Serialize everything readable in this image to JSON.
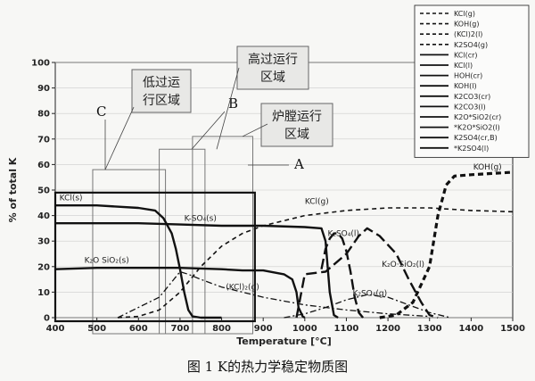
{
  "caption": "图 1 K的热力学稳定物质图",
  "chart_data": {
    "type": "line",
    "xlabel": "Temperature [°C]",
    "ylabel": "% of total K",
    "xlim": [
      400,
      1500
    ],
    "ylim": [
      0,
      100
    ],
    "xticks": [
      400,
      500,
      600,
      700,
      800,
      900,
      1000,
      1100,
      1200,
      1300,
      1400,
      1500
    ],
    "yticks": [
      0,
      10,
      20,
      30,
      40,
      50,
      60,
      70,
      80,
      90,
      100
    ],
    "legend_position": "right",
    "series": [
      {
        "name": "KCl(s)",
        "style": "solid-thick",
        "x": [
          400,
          500,
          600,
          640,
          660,
          680,
          690,
          700,
          710,
          720,
          730,
          750,
          800
        ],
        "y": [
          44,
          44,
          43,
          42,
          39,
          33,
          27,
          19,
          10,
          3,
          0.5,
          0,
          0
        ]
      },
      {
        "name": "K-SO4(s)",
        "style": "solid-thick",
        "x": [
          400,
          600,
          700,
          800,
          900,
          1000,
          1040,
          1050,
          1060,
          1070,
          1080
        ],
        "y": [
          37,
          37,
          36.5,
          36,
          36,
          35.5,
          35,
          30,
          10,
          1,
          0
        ]
      },
      {
        "name": "K2O·SiO2(s)",
        "style": "solid-thick",
        "x": [
          400,
          500,
          600,
          700,
          800,
          850,
          900,
          950,
          970,
          980,
          985,
          995,
          1000
        ],
        "y": [
          19,
          19.5,
          19.5,
          19.5,
          19,
          18.5,
          18.5,
          17,
          15,
          10,
          4,
          0.5,
          0
        ]
      },
      {
        "name": "KCl(g)",
        "style": "dashed",
        "x": [
          550,
          600,
          650,
          700,
          750,
          800,
          850,
          900,
          1000,
          1100,
          1200,
          1300,
          1400,
          1500
        ],
        "y": [
          0,
          0.5,
          3,
          10,
          20,
          28,
          33,
          36,
          40,
          42,
          43,
          43,
          42,
          41.5
        ]
      },
      {
        "name": "K2SO4(l)",
        "style": "long-dash",
        "x": [
          1040,
          1050,
          1060,
          1070,
          1080,
          1090,
          1100,
          1110,
          1120,
          1130,
          1140
        ],
        "y": [
          19,
          27,
          31,
          33,
          33,
          31,
          26,
          18,
          8,
          2,
          0
        ]
      },
      {
        "name": "K2O·SiO2(l)",
        "style": "long-dash",
        "x": [
          980,
          1000,
          1050,
          1100,
          1130,
          1150,
          1180,
          1220,
          1250,
          1280,
          1300,
          1320
        ],
        "y": [
          0,
          17,
          18,
          25,
          32,
          35,
          32,
          25,
          15,
          6,
          1,
          0
        ]
      },
      {
        "name": "(KCl)2(g)",
        "style": "dash-dot",
        "x": [
          550,
          650,
          680,
          700,
          720,
          750,
          800,
          900,
          1000,
          1100,
          1200,
          1300
        ],
        "y": [
          0,
          8,
          14,
          18,
          17,
          15,
          12,
          8,
          5,
          3,
          1.5,
          0.5
        ]
      },
      {
        "name": "K2SO4(g)",
        "style": "dash-dot",
        "x": [
          950,
          1000,
          1050,
          1100,
          1150,
          1200,
          1250,
          1300,
          1350
        ],
        "y": [
          0,
          1.5,
          4,
          7,
          9,
          8,
          5,
          2,
          0
        ]
      },
      {
        "name": "KOH(g)",
        "style": "dashed-thick",
        "x": [
          1180,
          1220,
          1260,
          1300,
          1320,
          1340,
          1360,
          1400,
          1450,
          1500
        ],
        "y": [
          0,
          1,
          6,
          20,
          40,
          52,
          55.5,
          56,
          56.5,
          57
        ]
      }
    ],
    "curve_labels": [
      {
        "text": "KCl(s)",
        "x": 410,
        "y": 46
      },
      {
        "text": "K-SO₄(s)",
        "x": 710,
        "y": 38
      },
      {
        "text": "K₂O SiO₂(s)",
        "x": 470,
        "y": 21.5
      },
      {
        "text": "KCl(g)",
        "x": 1000,
        "y": 44.5
      },
      {
        "text": "K₂SO₄(l)",
        "x": 1055,
        "y": 32
      },
      {
        "text": "K₂O·SiO₂(l)",
        "x": 1185,
        "y": 20
      },
      {
        "text": "(KCl)₂(g)",
        "x": 810,
        "y": 11
      },
      {
        "text": "K₂SO₄(g)",
        "x": 1115,
        "y": 8.5
      },
      {
        "text": "KOH(g)",
        "x": 1405,
        "y": 58
      }
    ],
    "legend": [
      {
        "text": "KCl(g)",
        "style": "dashed"
      },
      {
        "text": "KOH(g)",
        "style": "dashed"
      },
      {
        "text": "(KCl)2(l)",
        "style": "dashed"
      },
      {
        "text": "K2SO4(g)",
        "style": "dashed"
      },
      {
        "text": "KCl(cr)",
        "style": "solid"
      },
      {
        "text": "KCl(l)",
        "style": "solid"
      },
      {
        "text": "HOH(cr)",
        "style": "solid"
      },
      {
        "text": "KOH(l)",
        "style": "solid"
      },
      {
        "text": "K2CO3(cr)",
        "style": "solid"
      },
      {
        "text": "K2CO3(l)",
        "style": "solid"
      },
      {
        "text": "K2O*SiO2(cr)",
        "style": "solid"
      },
      {
        "text": "*K2O*SiO2(l)",
        "style": "solid"
      },
      {
        "text": "K2SO4(cr,B)",
        "style": "solid"
      },
      {
        "text": "*K2SO4(l)",
        "style": "solid"
      }
    ],
    "regions": [
      {
        "id": "C",
        "lines": [
          "低过运",
          "行区域"
        ],
        "x": [
          490,
          665
        ]
      },
      {
        "id": "B",
        "lines": [
          "高过运行",
          "区域"
        ],
        "x": [
          650,
          760
        ]
      },
      {
        "id": "A",
        "lines": [
          "炉膛运行",
          "区域"
        ],
        "x": [
          730,
          875
        ]
      }
    ],
    "region_letters": [
      "C",
      "B",
      "A"
    ]
  }
}
